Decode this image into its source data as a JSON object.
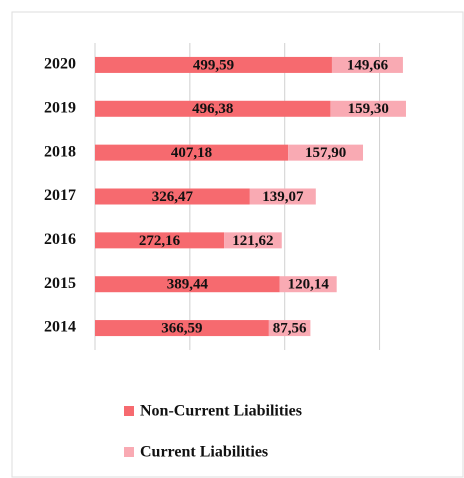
{
  "chart_data": {
    "type": "stacked_bar_horizontal",
    "categories": [
      "2020",
      "2019",
      "2018",
      "2017",
      "2016",
      "2015",
      "2014"
    ],
    "series": [
      {
        "name": "Non-Current Liabilities",
        "color": "#f66a6f",
        "values": [
          499.59,
          496.38,
          407.18,
          326.47,
          272.16,
          389.44,
          366.59
        ],
        "value_labels": [
          "499,59",
          "496,38",
          "407,18",
          "326,47",
          "272,16",
          "389,44",
          "366,59"
        ]
      },
      {
        "name": "Current Liabilities",
        "color": "#f9aab3",
        "values": [
          149.66,
          159.3,
          157.9,
          139.07,
          121.62,
          120.14,
          87.56
        ],
        "value_labels": [
          "149,66",
          "159,30",
          "157,90",
          "139,07",
          "121,62",
          "120,14",
          "87,56"
        ]
      }
    ],
    "xlim": [
      0,
      700
    ],
    "xticks": [
      0,
      200,
      400,
      600
    ],
    "grid": true,
    "legend": "bottom"
  }
}
